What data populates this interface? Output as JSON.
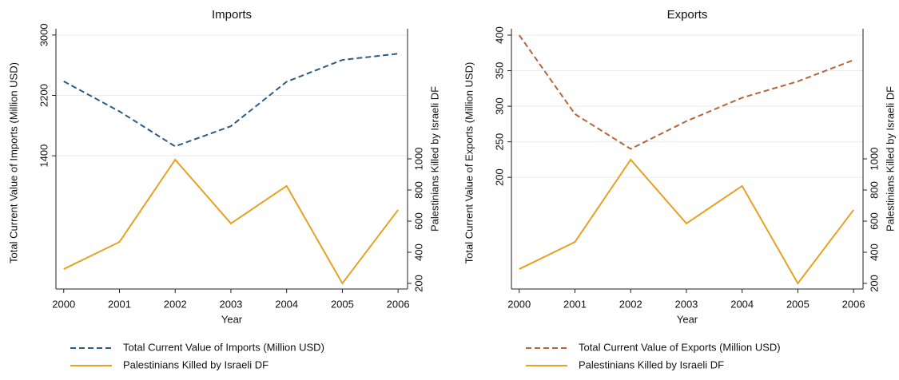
{
  "chart_data": [
    {
      "type": "line",
      "title": "Imports",
      "x_label": "Year",
      "y_label": "Total Current Value of Imports (Million USD)",
      "y2_label": "Palestinians Killed by Israeli DF",
      "x": [
        2000,
        2001,
        2002,
        2003,
        2004,
        2005,
        2006
      ],
      "xlim": [
        1999.86,
        2006.17
      ],
      "xticks": [
        2000,
        2001,
        2002,
        2003,
        2004,
        2005,
        2006
      ],
      "ylim": [
        -365,
        3083
      ],
      "yticks": [
        1400,
        2200,
        3000
      ],
      "y2lim": [
        164,
        1836
      ],
      "y2ticks": [
        200,
        400,
        600,
        800,
        1000
      ],
      "grid": true,
      "series": [
        {
          "name": "Total Current Value of Imports (Million USD)",
          "color": "#2b5b84",
          "dash": "dashed",
          "values": [
            2386,
            1988,
            1524,
            1792,
            2381,
            2670,
            2752
          ]
        },
        {
          "name": "Palestinians Killed by Israeli DF",
          "color": "#e8a020",
          "axis": "y2",
          "values": [
            292,
            466,
            995,
            585,
            826,
            200,
            672
          ]
        }
      ]
    },
    {
      "type": "line",
      "title": "Exports",
      "x_label": "Year",
      "y_label": "Total Current Value of Exports (Million USD)",
      "y2_label": "Palestinians Killed by Israeli DF",
      "x": [
        2000,
        2001,
        2002,
        2003,
        2004,
        2005,
        2006
      ],
      "xlim": [
        1999.86,
        2006.17
      ],
      "xticks": [
        2000,
        2001,
        2002,
        2003,
        2004,
        2005,
        2006
      ],
      "ylim": [
        43,
        409
      ],
      "yticks": [
        200,
        250,
        300,
        350,
        400
      ],
      "y2lim": [
        164,
        1836
      ],
      "y2ticks": [
        200,
        400,
        600,
        800,
        1000
      ],
      "grid": true,
      "series": [
        {
          "name": "Total Current Value of Exports (Million USD)",
          "color": "#b5653a",
          "dash": "dashed",
          "values": [
            400,
            289,
            240,
            279,
            312,
            335,
            365
          ]
        },
        {
          "name": "Palestinians Killed by Israeli DF",
          "color": "#e8a020",
          "axis": "y2",
          "values": [
            292,
            466,
            995,
            585,
            826,
            200,
            672
          ]
        }
      ]
    }
  ]
}
